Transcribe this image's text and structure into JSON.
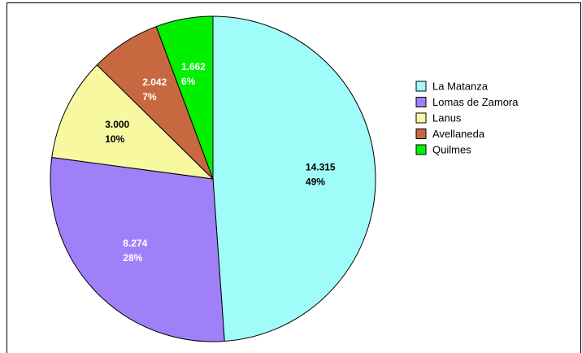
{
  "chart_data": {
    "type": "pie",
    "categories": [
      "La Matanza",
      "Lomas de Zamora",
      "Lanus",
      "Avellaneda",
      "Quilmes"
    ],
    "values": [
      14315,
      8274,
      3000,
      2042,
      1662
    ],
    "value_labels": [
      "14.315",
      "8.274",
      "3.000",
      "2.042",
      "1.662"
    ],
    "percents": [
      49,
      28,
      10,
      7,
      6
    ],
    "percent_labels": [
      "49%",
      "28%",
      "10%",
      "7%",
      "6%"
    ],
    "colors": [
      "#a0fcf8",
      "#a080f8",
      "#f8f8a0",
      "#c86840",
      "#00f000"
    ],
    "label_colors": [
      "#000000",
      "#ffffff",
      "#000000",
      "#ffffff",
      "#ffffff"
    ],
    "legend": "right"
  }
}
